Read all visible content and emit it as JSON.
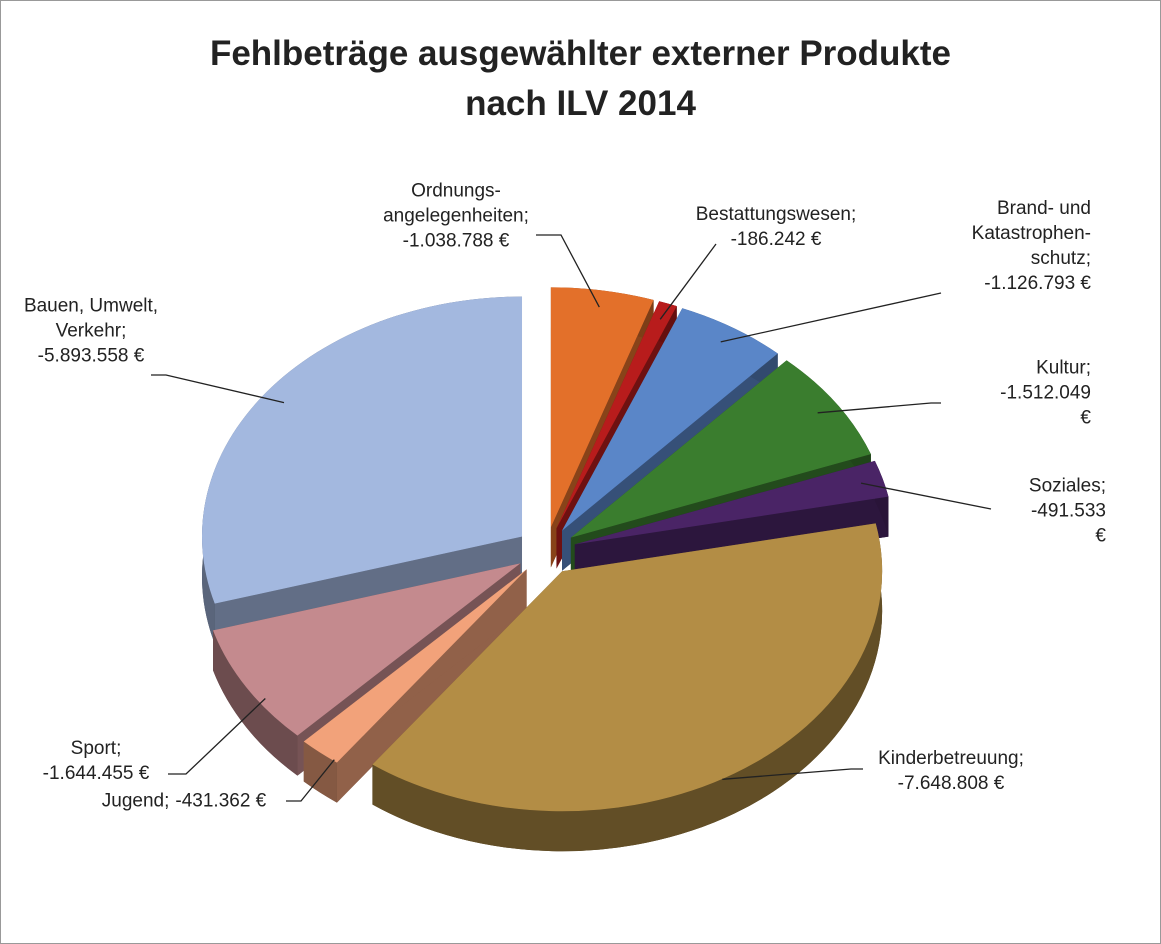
{
  "chart_data": {
    "type": "pie3d",
    "title": "Fehlbeträge ausgewählter externer Produkte\nnach ILV 2014",
    "label_separator": ";",
    "categories": [
      "Ordnungs-\nangelegenheiten",
      "Bestattungswesen",
      "Brand- und\nKatastrophen-\nschutz",
      "Kultur",
      "Soziales",
      "Kinderbetreuung",
      "Jugend",
      "Sport",
      "Bauen, Umwelt,\nVerkehr"
    ],
    "values": [
      -1038788,
      -186242,
      -1126793,
      -1512049,
      -491533,
      -7648808,
      -431362,
      -1644455,
      -5893558
    ],
    "value_labels": [
      "-1.038.788 €",
      "-186.242 €",
      "-1.126.793 €",
      "-1.512.049 €",
      "-491.533 €",
      "-7.648.808 €",
      "-431.362 €",
      "-1.644.455 €",
      "-5.893.558 €"
    ],
    "colors": [
      "#e3702a",
      "#b81c1c",
      "#5a86c8",
      "#3a7d2e",
      "#4a2466",
      "#b38d45",
      "#f2a27a",
      "#c48a8e",
      "#a3b8df"
    ]
  }
}
